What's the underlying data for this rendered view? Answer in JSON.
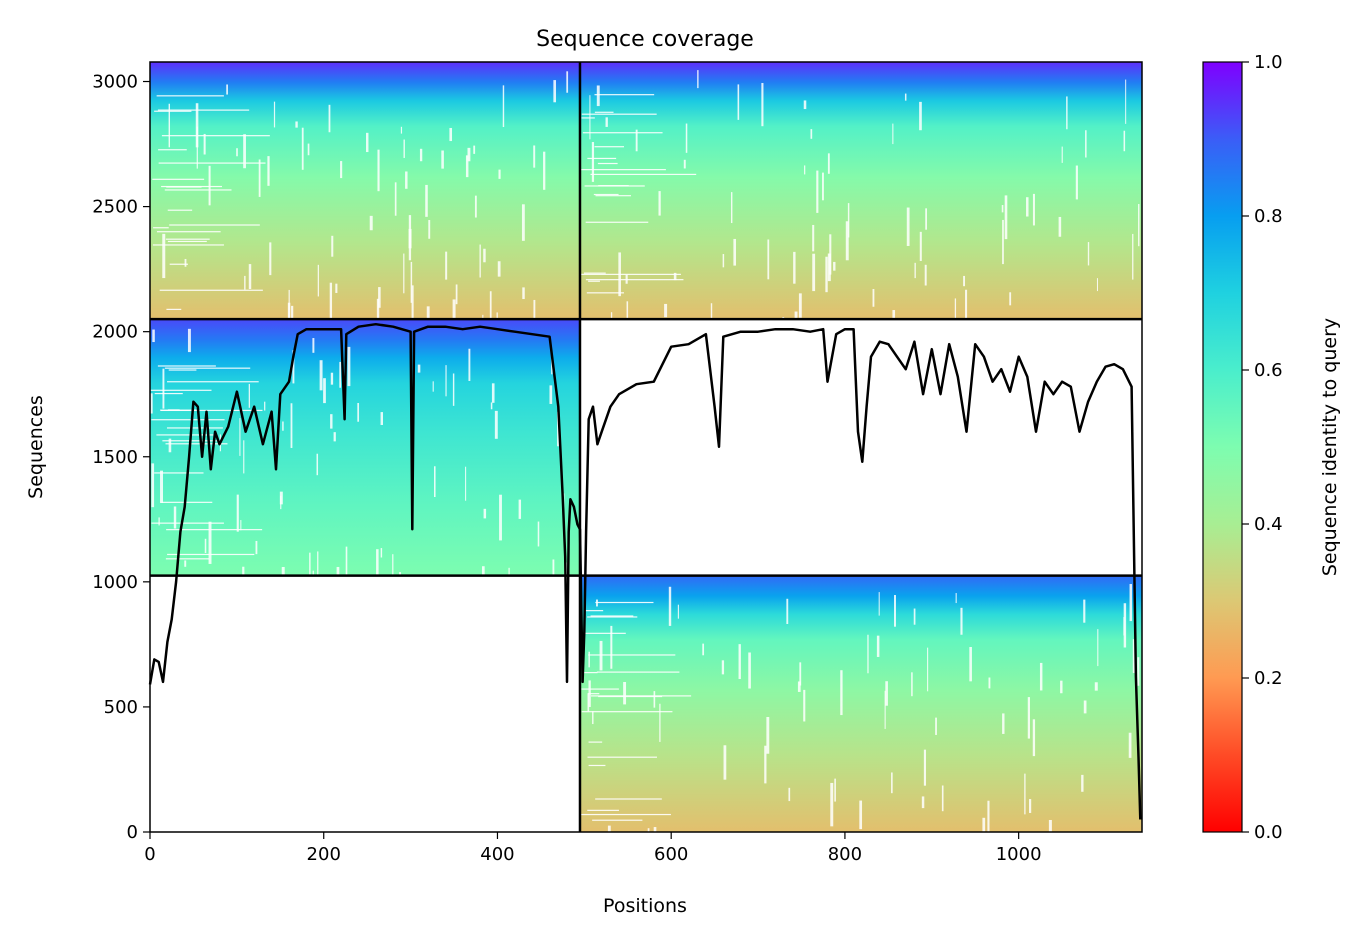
{
  "chart_data": {
    "type": "heatmap",
    "title": "Sequence coverage",
    "xlabel": "Positions",
    "ylabel": "Sequences",
    "xlim": [
      0,
      1142
    ],
    "ylim": [
      0,
      3078
    ],
    "x_ticks": [
      0,
      200,
      400,
      600,
      800,
      1000
    ],
    "y_ticks": [
      0,
      500,
      1000,
      1500,
      2000,
      2500,
      3000
    ],
    "grid": false,
    "colorbar": {
      "label": "Sequence identity to query",
      "range": [
        0.0,
        1.0
      ],
      "ticks": [
        "0.0",
        "0.2",
        "0.4",
        "0.6",
        "0.8",
        "1.0"
      ],
      "colormap": "rainbow_r"
    },
    "blocks": [
      {
        "name": "block-top-left",
        "x_range": [
          0,
          495
        ],
        "y_range": [
          2050,
          3078
        ],
        "identity_bottom": 0.28,
        "identity_top": 0.95
      },
      {
        "name": "block-top-right",
        "x_range": [
          495,
          1142
        ],
        "y_range": [
          2050,
          3078
        ],
        "identity_bottom": 0.28,
        "identity_top": 0.95
      },
      {
        "name": "block-middle-left",
        "x_range": [
          0,
          495
        ],
        "y_range": [
          1025,
          2050
        ],
        "identity_bottom": 0.5,
        "identity_top": 0.92
      },
      {
        "name": "block-bottom-right",
        "x_range": [
          495,
          1142
        ],
        "y_range": [
          0,
          1025
        ],
        "identity_bottom": 0.28,
        "identity_top": 0.88
      }
    ],
    "separators": {
      "vertical_x": [
        495
      ],
      "horizontal_y": [
        1025,
        2050
      ]
    },
    "coverage_line": {
      "name": "Coverage",
      "x": [
        0,
        5,
        10,
        15,
        20,
        25,
        30,
        35,
        40,
        45,
        50,
        55,
        60,
        65,
        70,
        75,
        80,
        90,
        100,
        110,
        120,
        130,
        140,
        145,
        150,
        160,
        165,
        170,
        180,
        200,
        220,
        224,
        226,
        240,
        260,
        280,
        300,
        302,
        304,
        320,
        340,
        360,
        380,
        400,
        420,
        440,
        460,
        470,
        475,
        478,
        480,
        482,
        484,
        488,
        492,
        495,
        498,
        500,
        502,
        505,
        510,
        515,
        520,
        530,
        540,
        560,
        580,
        600,
        620,
        640,
        650,
        655,
        660,
        680,
        700,
        720,
        740,
        760,
        775,
        780,
        790,
        800,
        810,
        815,
        820,
        825,
        830,
        840,
        850,
        860,
        870,
        880,
        890,
        900,
        910,
        920,
        930,
        940,
        950,
        960,
        970,
        980,
        990,
        1000,
        1010,
        1020,
        1030,
        1040,
        1050,
        1060,
        1070,
        1080,
        1090,
        1100,
        1110,
        1120,
        1130,
        1135,
        1138,
        1140
      ],
      "y": [
        590,
        690,
        680,
        600,
        760,
        850,
        1000,
        1200,
        1300,
        1500,
        1720,
        1700,
        1500,
        1680,
        1450,
        1600,
        1550,
        1620,
        1760,
        1600,
        1700,
        1550,
        1680,
        1450,
        1750,
        1800,
        1900,
        1990,
        2010,
        2010,
        2010,
        1650,
        1990,
        2020,
        2030,
        2020,
        2000,
        1210,
        2000,
        2020,
        2020,
        2010,
        2020,
        2010,
        2000,
        1990,
        1980,
        1700,
        1350,
        1100,
        600,
        1200,
        1330,
        1300,
        1230,
        1210,
        600,
        800,
        1200,
        1650,
        1700,
        1550,
        1600,
        1700,
        1750,
        1790,
        1800,
        1940,
        1950,
        1990,
        1700,
        1540,
        1980,
        2000,
        2000,
        2010,
        2010,
        2000,
        2010,
        1800,
        1990,
        2010,
        2010,
        1600,
        1480,
        1700,
        1900,
        1960,
        1950,
        1900,
        1850,
        1960,
        1750,
        1930,
        1750,
        1950,
        1820,
        1600,
        1950,
        1900,
        1800,
        1850,
        1760,
        1900,
        1820,
        1600,
        1800,
        1750,
        1800,
        1780,
        1600,
        1720,
        1800,
        1860,
        1870,
        1850,
        1780,
        620,
        300,
        50
      ]
    }
  }
}
